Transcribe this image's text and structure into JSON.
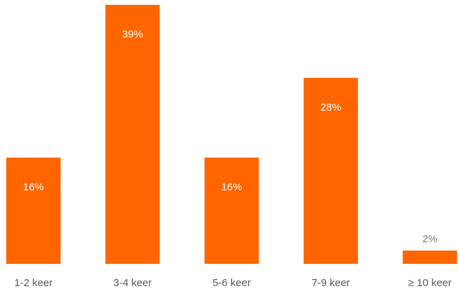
{
  "chart_data": {
    "type": "bar",
    "categories": [
      "1-2 keer",
      "3-4 keer",
      "5-6 keer",
      "7-9 keer",
      "≥ 10 keer"
    ],
    "values": [
      16,
      39,
      16,
      28,
      2
    ],
    "value_labels": [
      "16%",
      "39%",
      "16%",
      "28%",
      "2%"
    ],
    "color": "#ff6600"
  }
}
